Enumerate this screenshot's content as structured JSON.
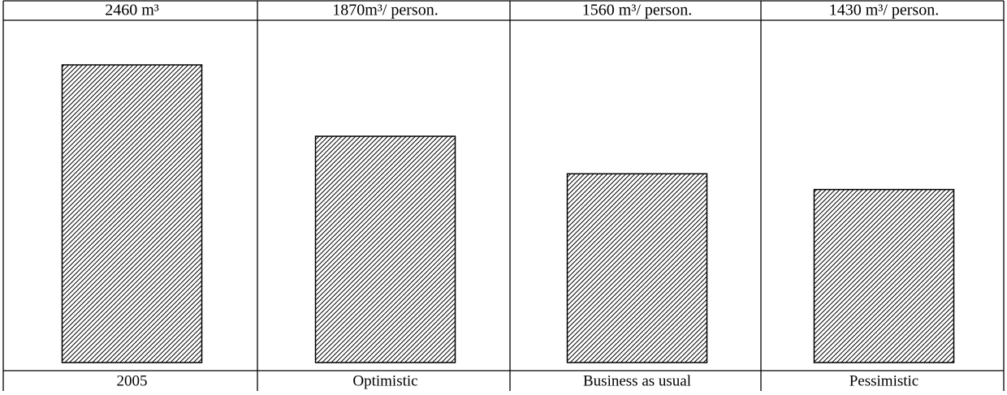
{
  "chart_data": {
    "type": "bar",
    "categories": [
      "2005",
      "Optimistic",
      "Business as usual",
      "Pessimistic"
    ],
    "values": [
      2460,
      1870,
      1560,
      1430
    ],
    "value_labels": [
      "2460 m³",
      "1870m³/ person.",
      "1560 m³/ person.",
      "1430 m³/ person."
    ],
    "color": "#000000"
  }
}
